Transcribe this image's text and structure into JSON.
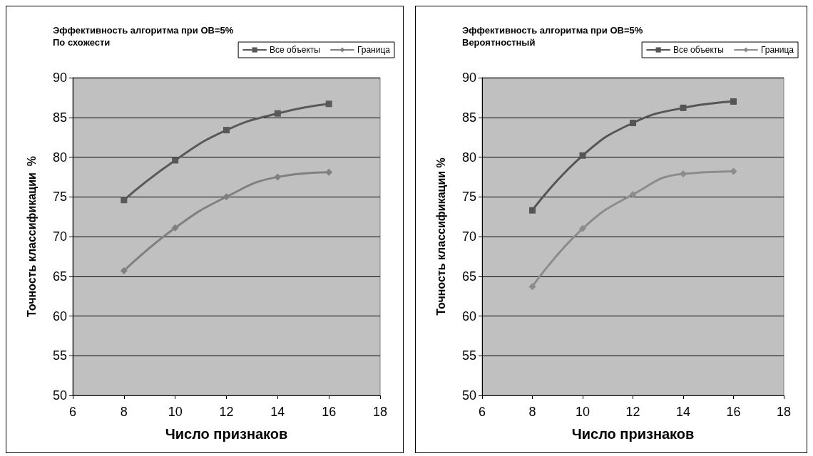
{
  "chart_data": [
    {
      "type": "line",
      "title": "Эффективность алгоритма при ОВ=5%",
      "subtitle": "По схожести",
      "xlabel": "Число признаков",
      "ylabel": "Точность классификации  %",
      "x": [
        8,
        10,
        12,
        14,
        16
      ],
      "series": [
        {
          "name": "Все объекты",
          "color": "#595959",
          "marker": "square",
          "values": [
            74.6,
            79.6,
            83.4,
            85.5,
            86.7
          ]
        },
        {
          "name": "Граница",
          "color": "#808080",
          "marker": "diamond",
          "values": [
            65.7,
            71.1,
            75.0,
            77.5,
            78.1
          ]
        }
      ],
      "xlim": [
        6,
        18
      ],
      "xticks": [
        6,
        8,
        10,
        12,
        14,
        16,
        18
      ],
      "ylim": [
        50,
        90
      ],
      "yticks": [
        50,
        55,
        60,
        65,
        70,
        75,
        80,
        85,
        90
      ],
      "grid": "y",
      "legend": "top right"
    },
    {
      "type": "line",
      "title": "Эффективность алгоритма при ОВ=5%",
      "subtitle": "Вероятностный",
      "xlabel": "Число признаков",
      "ylabel": "Точность классификации %",
      "x": [
        8,
        10,
        12,
        14,
        16
      ],
      "series": [
        {
          "name": "Все объекты",
          "color": "#555555",
          "marker": "square",
          "values": [
            73.3,
            80.2,
            84.3,
            86.2,
            87.0
          ]
        },
        {
          "name": "Граница",
          "color": "#8c8c8c",
          "marker": "diamond",
          "values": [
            63.7,
            71.0,
            75.3,
            77.9,
            78.2
          ]
        }
      ],
      "xlim": [
        6,
        18
      ],
      "xticks": [
        6,
        8,
        10,
        12,
        14,
        16,
        18
      ],
      "ylim": [
        50,
        90
      ],
      "yticks": [
        50,
        55,
        60,
        65,
        70,
        75,
        80,
        85,
        90
      ],
      "grid": "y",
      "legend": "top right"
    }
  ]
}
